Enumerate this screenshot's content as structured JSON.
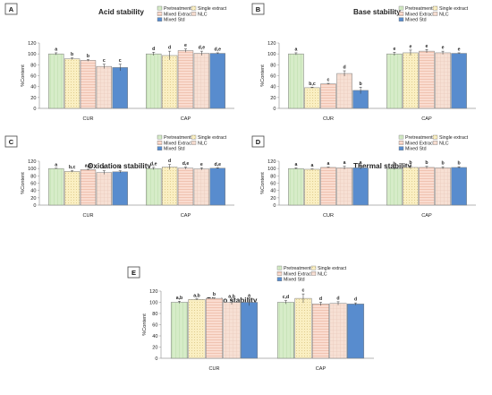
{
  "legend": [
    "Pretreatment",
    "Single extract",
    "Mixed Extract",
    "NLC",
    "Mixed Std"
  ],
  "colors": {
    "pretreatment": "#d6ecc8",
    "single_extract": "#faefc2",
    "mixed_extract": "#fadcd0",
    "nlc": "#f7e0d4",
    "mixed_std": "#5b8fd0",
    "edge": "#7a7a7a",
    "axis": "#9a9a9a"
  },
  "chart_data": [
    {
      "label": "A",
      "type": "bar",
      "title": "Acid stability",
      "ylabel": "%Content",
      "ylim": [
        0,
        120
      ],
      "yticks": [
        0,
        20,
        40,
        60,
        80,
        100,
        120
      ],
      "categories": [
        "CUR",
        "CAP"
      ],
      "legend_position": "top-right",
      "series": [
        {
          "name": "Pretreatment",
          "values": [
            100,
            100
          ],
          "errors": [
            2,
            3
          ],
          "letters": [
            "a",
            "d"
          ]
        },
        {
          "name": "Single extract",
          "values": [
            91,
            97
          ],
          "errors": [
            1.5,
            8
          ],
          "letters": [
            "b",
            "d"
          ]
        },
        {
          "name": "Mixed Extract",
          "values": [
            88,
            106
          ],
          "errors": [
            1.5,
            3
          ],
          "letters": [
            "b",
            "e"
          ]
        },
        {
          "name": "NLC",
          "values": [
            77,
            101
          ],
          "errors": [
            4,
            4
          ],
          "letters": [
            "c",
            "d,e"
          ]
        },
        {
          "name": "Mixed Std",
          "values": [
            75,
            101
          ],
          "errors": [
            6,
            1
          ],
          "letters": [
            "c",
            "d,e"
          ]
        }
      ]
    },
    {
      "label": "B",
      "type": "bar",
      "title": "Base stability",
      "ylabel": "%Content",
      "ylim": [
        0,
        120
      ],
      "yticks": [
        0,
        20,
        40,
        60,
        80,
        100,
        120
      ],
      "categories": [
        "CUR",
        "CAP"
      ],
      "legend_position": "top-right",
      "series": [
        {
          "name": "Pretreatment",
          "values": [
            100,
            100
          ],
          "errors": [
            2,
            3
          ],
          "letters": [
            "a",
            "e"
          ]
        },
        {
          "name": "Single extract",
          "values": [
            38,
            102
          ],
          "errors": [
            1,
            5
          ],
          "letters": [
            "b,c",
            "e"
          ]
        },
        {
          "name": "Mixed Extract",
          "values": [
            45,
            105
          ],
          "errors": [
            1,
            3
          ],
          "letters": [
            "c",
            "e"
          ]
        },
        {
          "name": "NLC",
          "values": [
            64,
            102
          ],
          "errors": [
            5,
            3
          ],
          "letters": [
            "d",
            "e"
          ]
        },
        {
          "name": "Mixed Std",
          "values": [
            33,
            101
          ],
          "errors": [
            6,
            1
          ],
          "letters": [
            "b",
            "e"
          ]
        }
      ]
    },
    {
      "label": "C",
      "type": "bar",
      "title": "Oxidation stability",
      "ylabel": "%Content",
      "ylim": [
        0,
        120
      ],
      "yticks": [
        0,
        20,
        40,
        60,
        80,
        100,
        120
      ],
      "categories": [
        "CUR",
        "CAP"
      ],
      "legend_position": "top-right",
      "series": [
        {
          "name": "Pretreatment",
          "values": [
            100,
            100
          ],
          "errors": [
            1,
            3
          ],
          "letters": [
            "a",
            "d,e"
          ]
        },
        {
          "name": "Single extract",
          "values": [
            92,
            104
          ],
          "errors": [
            2,
            7
          ],
          "letters": [
            "b,c",
            "d"
          ]
        },
        {
          "name": "Mixed Extract",
          "values": [
            97,
            101
          ],
          "errors": [
            1,
            3
          ],
          "letters": [
            "a,b",
            "d,e"
          ]
        },
        {
          "name": "NLC",
          "values": [
            89,
            99
          ],
          "errors": [
            5,
            3
          ],
          "letters": [
            "c",
            "e"
          ]
        },
        {
          "name": "Mixed Std",
          "values": [
            91,
            101
          ],
          "errors": [
            3,
            1
          ],
          "letters": [
            "c",
            "d,e"
          ]
        }
      ]
    },
    {
      "label": "D",
      "type": "bar",
      "title": "Thermal stability",
      "ylabel": "%Content",
      "ylim": [
        0,
        120
      ],
      "yticks": [
        0,
        20,
        40,
        60,
        80,
        100,
        120
      ],
      "categories": [
        "CUR",
        "CAP"
      ],
      "legend_position": "top-right",
      "series": [
        {
          "name": "Pretreatment",
          "values": [
            100,
            100
          ],
          "errors": [
            2,
            3
          ],
          "letters": [
            "a",
            "b"
          ]
        },
        {
          "name": "Single extract",
          "values": [
            98,
            103
          ],
          "errors": [
            1,
            4
          ],
          "letters": [
            "a",
            "b"
          ]
        },
        {
          "name": "Mixed Extract",
          "values": [
            103,
            103
          ],
          "errors": [
            1,
            3
          ],
          "letters": [
            "a",
            "b"
          ]
        },
        {
          "name": "NLC",
          "values": [
            102,
            102
          ],
          "errors": [
            4,
            3
          ],
          "letters": [
            "a",
            "b"
          ]
        },
        {
          "name": "Mixed Std",
          "values": [
            102,
            103
          ],
          "errors": [
            4,
            2
          ],
          "letters": [
            "a",
            "b"
          ]
        }
      ]
    },
    {
      "label": "E",
      "type": "bar",
      "title": "Photo stability",
      "ylabel": "%Content",
      "ylim": [
        0,
        120
      ],
      "yticks": [
        0,
        20,
        40,
        60,
        80,
        100,
        120
      ],
      "categories": [
        "CUR",
        "CAP"
      ],
      "legend_position": "top-right",
      "series": [
        {
          "name": "Pretreatment",
          "values": [
            100,
            100
          ],
          "errors": [
            2,
            3
          ],
          "letters": [
            "a,b",
            "c,d"
          ]
        },
        {
          "name": "Single extract",
          "values": [
            105,
            107
          ],
          "errors": [
            1,
            8
          ],
          "letters": [
            "a,b",
            "c"
          ]
        },
        {
          "name": "Mixed Extract",
          "values": [
            107,
            97
          ],
          "errors": [
            1,
            3
          ],
          "letters": [
            "b",
            "d"
          ]
        },
        {
          "name": "NLC",
          "values": [
            100,
            98
          ],
          "errors": [
            4,
            3
          ],
          "letters": [
            "a,b",
            "d"
          ]
        },
        {
          "name": "Mixed Std",
          "values": [
            100,
            97
          ],
          "errors": [
            6,
            2
          ],
          "letters": [
            "a",
            "d"
          ]
        }
      ]
    }
  ]
}
